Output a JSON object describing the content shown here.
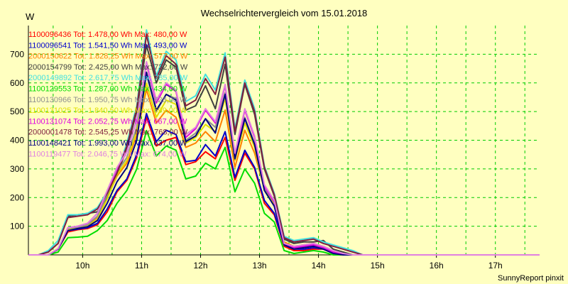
{
  "chart_data": {
    "type": "line",
    "title": "Wechselrichtervergleich vom 15.01.2018",
    "ylabel": "W",
    "xlabel": "",
    "footer": "SunnyReport pinxit",
    "grid": true,
    "legend_position": "top-left",
    "xlim": [
      9.08,
      17.75
    ],
    "ylim": [
      0,
      800
    ],
    "x_ticks": [
      10,
      11,
      12,
      13,
      14,
      15,
      16,
      17
    ],
    "x_tick_labels": [
      "10h",
      "11h",
      "12h",
      "13h",
      "14h",
      "15h",
      "16h",
      "17h"
    ],
    "y_ticks": [
      100,
      200,
      300,
      400,
      500,
      600,
      700
    ],
    "x": [
      9.083,
      9.25,
      9.417,
      9.583,
      9.75,
      9.917,
      10.083,
      10.25,
      10.417,
      10.583,
      10.75,
      10.917,
      11.083,
      11.25,
      11.417,
      11.583,
      11.75,
      11.917,
      12.083,
      12.25,
      12.417,
      12.583,
      12.75,
      12.917,
      13.083,
      13.25,
      13.417,
      13.583,
      13.75,
      13.917,
      14.083,
      14.25,
      14.417,
      14.583,
      14.75,
      14.917,
      15.083,
      15.25,
      15.417,
      15.583,
      15.75,
      15.917,
      16.083,
      16.25,
      16.417,
      16.583,
      16.75,
      16.917,
      17.083,
      17.25,
      17.417,
      17.583,
      17.75
    ],
    "series": [
      {
        "name": "1100096436",
        "label": "1100096436 Tot: 1.478,00 Wh Max: 480,00 W",
        "color": "#ff0000",
        "values": [
          0,
          0,
          0,
          20,
          80,
          88,
          92,
          105,
          150,
          220,
          260,
          340,
          480,
          380,
          400,
          410,
          315,
          325,
          360,
          335,
          410,
          260,
          355,
          300,
          180,
          140,
          30,
          15,
          15,
          20,
          20,
          5,
          0,
          0,
          0,
          0,
          0,
          0,
          0,
          0,
          0,
          0,
          0,
          0,
          0,
          0,
          0,
          0,
          0,
          0,
          0,
          0,
          0
        ]
      },
      {
        "name": "1100096541",
        "label": "1100096541 Tot: 1.541,50 Wh Max: 493,00 W",
        "color": "#0000cc",
        "values": [
          0,
          0,
          0,
          20,
          85,
          90,
          95,
          110,
          160,
          225,
          265,
          350,
          493,
          395,
          435,
          420,
          325,
          330,
          385,
          345,
          430,
          270,
          365,
          305,
          190,
          145,
          35,
          20,
          20,
          25,
          20,
          8,
          0,
          0,
          0,
          0,
          0,
          0,
          0,
          0,
          0,
          0,
          0,
          0,
          0,
          0,
          0,
          0,
          0,
          0,
          0,
          0,
          0
        ]
      },
      {
        "name": "2000150622",
        "label": "2000150622 Tot: 1.828,25 Wh Max: 577,00 W",
        "color": "#ff8000",
        "values": [
          0,
          0,
          0,
          22,
          90,
          95,
          105,
          130,
          200,
          275,
          320,
          420,
          577,
          460,
          505,
          480,
          375,
          390,
          430,
          395,
          505,
          305,
          435,
          355,
          230,
          175,
          45,
          30,
          35,
          40,
          30,
          15,
          0,
          0,
          0,
          0,
          0,
          0,
          0,
          0,
          0,
          0,
          0,
          0,
          0,
          0,
          0,
          0,
          0,
          0,
          0,
          0,
          0
        ]
      },
      {
        "name": "2000154799",
        "label": "2000154799 Tot: 2.425,00 Wh Max: 732,00 W",
        "color": "#404040",
        "values": [
          0,
          0,
          10,
          40,
          135,
          140,
          145,
          150,
          200,
          280,
          370,
          500,
          732,
          600,
          680,
          655,
          505,
          520,
          590,
          510,
          665,
          420,
          595,
          490,
          300,
          205,
          55,
          40,
          45,
          45,
          50,
          20,
          10,
          0,
          0,
          0,
          0,
          0,
          0,
          0,
          0,
          0,
          0,
          0,
          0,
          0,
          0,
          0,
          0,
          0,
          0,
          0,
          0
        ]
      },
      {
        "name": "2000149892",
        "label": "2000149892 Tot: 2.617,75 Wh Max: 785,00 W",
        "color": "#40e0e0",
        "values": [
          0,
          0,
          15,
          50,
          140,
          140,
          145,
          165,
          220,
          290,
          390,
          520,
          785,
          625,
          710,
          680,
          535,
          555,
          630,
          575,
          705,
          440,
          610,
          510,
          310,
          215,
          65,
          50,
          55,
          60,
          45,
          35,
          25,
          15,
          0,
          0,
          0,
          0,
          0,
          0,
          0,
          0,
          0,
          0,
          0,
          0,
          0,
          0,
          0,
          0,
          0,
          0,
          0
        ]
      },
      {
        "name": "1100129553",
        "label": "1100129553 Tot: 1.287,00 Wh Max: 434,00 W",
        "color": "#00dd00",
        "values": [
          0,
          0,
          0,
          10,
          60,
          62,
          65,
          85,
          120,
          180,
          225,
          300,
          434,
          345,
          380,
          365,
          265,
          275,
          320,
          300,
          375,
          220,
          300,
          250,
          145,
          115,
          15,
          5,
          10,
          15,
          10,
          0,
          0,
          0,
          0,
          0,
          0,
          0,
          0,
          0,
          0,
          0,
          0,
          0,
          0,
          0,
          0,
          0,
          0,
          0,
          0,
          0,
          0
        ]
      },
      {
        "name": "1100130966",
        "label": "1100130966 Tot: 1.950,75 Wh Max: 628,00 W",
        "color": "#909090",
        "values": [
          0,
          0,
          0,
          20,
          90,
          95,
          105,
          135,
          210,
          290,
          340,
          445,
          628,
          500,
          560,
          545,
          400,
          425,
          475,
          445,
          565,
          345,
          480,
          390,
          230,
          180,
          35,
          20,
          25,
          30,
          20,
          5,
          0,
          0,
          0,
          0,
          0,
          0,
          0,
          0,
          0,
          0,
          0,
          0,
          0,
          0,
          0,
          0,
          0,
          0,
          0,
          0,
          0
        ]
      },
      {
        "name": "1100131025",
        "label": "1100131025 Tot: 1.840,50 Wh Max: 599,00 W",
        "color": "#e0e000",
        "values": [
          0,
          0,
          0,
          20,
          88,
          92,
          100,
          125,
          195,
          280,
          330,
          430,
          599,
          480,
          540,
          525,
          390,
          410,
          455,
          430,
          545,
          330,
          460,
          375,
          225,
          175,
          35,
          25,
          25,
          30,
          20,
          5,
          0,
          0,
          0,
          0,
          0,
          0,
          0,
          0,
          0,
          0,
          0,
          0,
          0,
          0,
          0,
          0,
          0,
          0,
          0,
          0,
          0
        ]
      },
      {
        "name": "1100131074",
        "label": "1100131074 Tot: 2.052,75 Wh Max: 667,00 W",
        "color": "#e000e0",
        "values": [
          0,
          0,
          0,
          20,
          95,
          100,
          110,
          145,
          220,
          300,
          360,
          470,
          667,
          530,
          595,
          570,
          410,
          440,
          505,
          460,
          590,
          345,
          505,
          410,
          240,
          185,
          40,
          25,
          30,
          35,
          25,
          10,
          0,
          0,
          0,
          0,
          0,
          0,
          0,
          0,
          0,
          0,
          0,
          0,
          0,
          0,
          0,
          0,
          0,
          0,
          0,
          0,
          0
        ]
      },
      {
        "name": "2000001478",
        "label": "2000001478 Tot: 2.545,25 Wh Max: 768,00 W",
        "color": "#802040",
        "values": [
          0,
          0,
          10,
          40,
          130,
          135,
          140,
          160,
          215,
          285,
          380,
          510,
          768,
          615,
          695,
          665,
          520,
          540,
          615,
          560,
          690,
          430,
          600,
          500,
          305,
          210,
          60,
          45,
          50,
          55,
          40,
          30,
          20,
          10,
          0,
          0,
          0,
          0,
          0,
          0,
          0,
          0,
          0,
          0,
          0,
          0,
          0,
          0,
          0,
          0,
          0,
          0,
          0
        ]
      },
      {
        "name": "1100148421",
        "label": "1100148421 Tot: 1.993,00 Wh Max: 637,00 W",
        "color": "#000080",
        "values": [
          0,
          0,
          0,
          20,
          85,
          92,
          98,
          120,
          180,
          255,
          305,
          400,
          637,
          505,
          560,
          540,
          395,
          415,
          475,
          425,
          560,
          335,
          475,
          385,
          225,
          170,
          35,
          20,
          25,
          30,
          20,
          5,
          0,
          0,
          0,
          0,
          0,
          0,
          0,
          0,
          0,
          0,
          0,
          0,
          0,
          0,
          0,
          0,
          0,
          0,
          0,
          0,
          0
        ]
      },
      {
        "name": "1100119477",
        "label": "1100119477 Tot: 2.046,75 Wh Max: 674,00 W",
        "color": "#e080e0",
        "values": [
          0,
          0,
          0,
          22,
          95,
          100,
          110,
          145,
          225,
          305,
          360,
          470,
          674,
          540,
          600,
          575,
          420,
          445,
          510,
          465,
          595,
          355,
          510,
          415,
          245,
          190,
          40,
          30,
          35,
          40,
          30,
          15,
          5,
          0,
          0,
          0,
          0,
          0,
          0,
          0,
          0,
          0,
          0,
          0,
          0,
          0,
          0,
          0,
          0,
          0,
          0,
          0,
          0
        ]
      }
    ]
  }
}
